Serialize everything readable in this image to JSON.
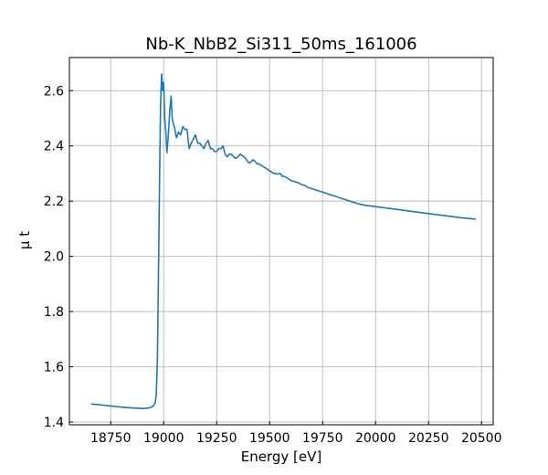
{
  "chart_data": {
    "type": "line",
    "title": "Nb-K_NbB2_Si311_50ms_161006",
    "xlabel": "Energy [eV]",
    "ylabel": "μ t",
    "xlim": [
      18555,
      20555
    ],
    "ylim": [
      1.39,
      2.72
    ],
    "xticks": [
      18750,
      19000,
      19250,
      19500,
      19750,
      20000,
      20250,
      20500
    ],
    "yticks": [
      1.4,
      1.6,
      1.8,
      2.0,
      2.2,
      2.4,
      2.6
    ],
    "xtick_labels": [
      "18750",
      "19000",
      "19250",
      "19500",
      "19750",
      "20000",
      "20250",
      "20500"
    ],
    "ytick_labels": [
      "1.4",
      "1.6",
      "1.8",
      "2.0",
      "2.2",
      "2.4",
      "2.6"
    ],
    "grid": true,
    "line_color": "#1f77b4",
    "series": [
      {
        "x": [
          18660,
          18700,
          18750,
          18800,
          18850,
          18900,
          18930,
          18950,
          18960,
          18965,
          18970,
          18975,
          18980,
          18985,
          18990,
          18995,
          19000,
          19005,
          19010,
          19015,
          19020,
          19025,
          19030,
          19035,
          19040,
          19045,
          19050,
          19060,
          19070,
          19080,
          19090,
          19100,
          19110,
          19120,
          19130,
          19140,
          19150,
          19160,
          19170,
          19180,
          19190,
          19200,
          19210,
          19220,
          19230,
          19240,
          19250,
          19260,
          19270,
          19280,
          19290,
          19300,
          19310,
          19320,
          19330,
          19340,
          19350,
          19360,
          19370,
          19380,
          19390,
          19400,
          19410,
          19420,
          19430,
          19440,
          19450,
          19460,
          19470,
          19480,
          19490,
          19500,
          19510,
          19520,
          19530,
          19540,
          19550,
          19560,
          19570,
          19580,
          19590,
          19600,
          19620,
          19640,
          19650,
          19660,
          19670,
          19680,
          19700,
          19720,
          19740,
          19760,
          19780,
          19800,
          19820,
          19840,
          19860,
          19880,
          19900,
          19920,
          19950,
          20000,
          20050,
          20100,
          20150,
          20200,
          20250,
          20300,
          20350,
          20400,
          20470
        ],
        "y": [
          1.465,
          1.462,
          1.458,
          1.454,
          1.451,
          1.449,
          1.451,
          1.457,
          1.47,
          1.5,
          1.62,
          1.9,
          2.25,
          2.55,
          2.66,
          2.6,
          2.63,
          2.5,
          2.45,
          2.375,
          2.42,
          2.48,
          2.54,
          2.58,
          2.5,
          2.48,
          2.47,
          2.43,
          2.45,
          2.44,
          2.47,
          2.46,
          2.46,
          2.39,
          2.41,
          2.425,
          2.44,
          2.41,
          2.41,
          2.4,
          2.39,
          2.41,
          2.42,
          2.39,
          2.39,
          2.38,
          2.38,
          2.39,
          2.39,
          2.4,
          2.37,
          2.36,
          2.37,
          2.37,
          2.36,
          2.355,
          2.36,
          2.37,
          2.365,
          2.36,
          2.35,
          2.34,
          2.34,
          2.35,
          2.345,
          2.335,
          2.335,
          2.33,
          2.325,
          2.32,
          2.315,
          2.31,
          2.305,
          2.3,
          2.3,
          2.298,
          2.3,
          2.29,
          2.29,
          2.285,
          2.28,
          2.275,
          2.27,
          2.265,
          2.26,
          2.258,
          2.255,
          2.25,
          2.245,
          2.24,
          2.235,
          2.23,
          2.225,
          2.22,
          2.215,
          2.21,
          2.205,
          2.2,
          2.195,
          2.19,
          2.185,
          2.18,
          2.175,
          2.17,
          2.165,
          2.16,
          2.155,
          2.15,
          2.145,
          2.14,
          2.135
        ]
      }
    ]
  }
}
